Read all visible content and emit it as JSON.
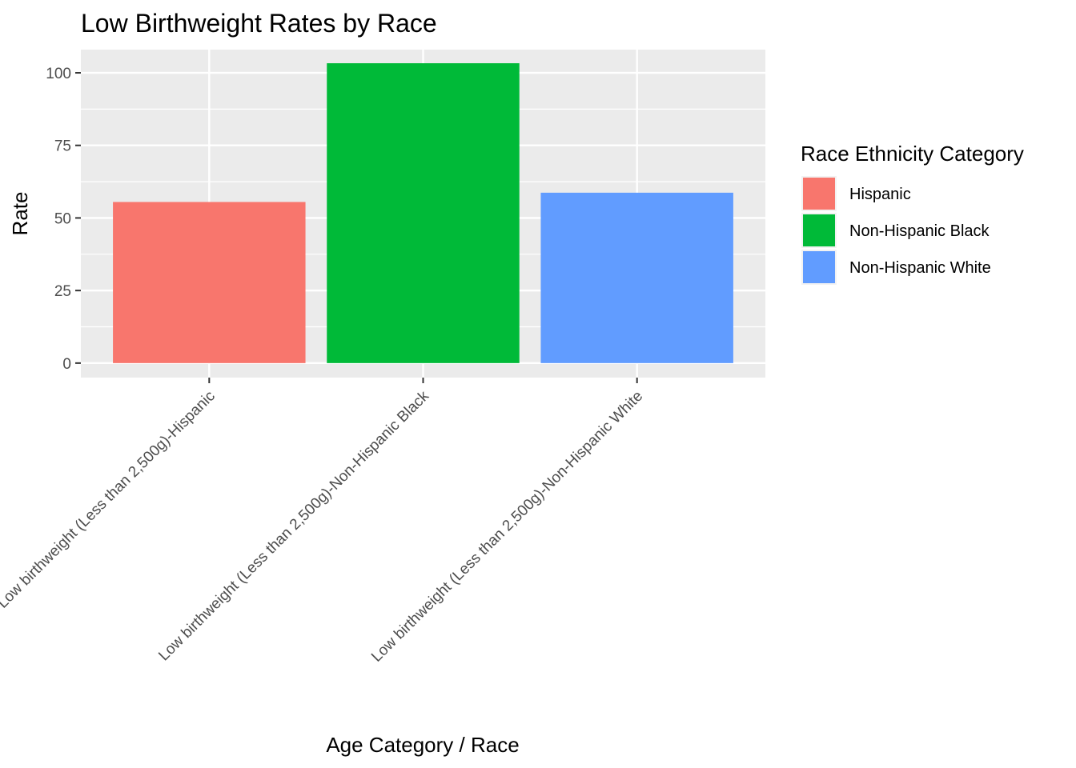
{
  "chart_data": {
    "type": "bar",
    "title": "Low Birthweight Rates by Race",
    "xlabel": "Age Category / Race",
    "ylabel": "Rate",
    "ylim": [
      -5,
      108
    ],
    "yticks": [
      0,
      25,
      50,
      75,
      100
    ],
    "grid": true,
    "categories": [
      "Low birthweight (Less than 2,500g)-Hispanic",
      "Low birthweight (Less than 2,500g)-Non-Hispanic Black",
      "Low birthweight (Less than 2,500g)-Non-Hispanic White"
    ],
    "values": [
      55.5,
      103.3,
      58.7
    ],
    "colors": [
      "#F8766D",
      "#00BA38",
      "#619CFF"
    ],
    "legend": {
      "title": "Race Ethnicity Category",
      "position": "right",
      "entries": [
        {
          "label": "Hispanic",
          "color": "#F8766D"
        },
        {
          "label": "Non-Hispanic Black",
          "color": "#00BA38"
        },
        {
          "label": "Non-Hispanic White",
          "color": "#619CFF"
        }
      ]
    }
  }
}
